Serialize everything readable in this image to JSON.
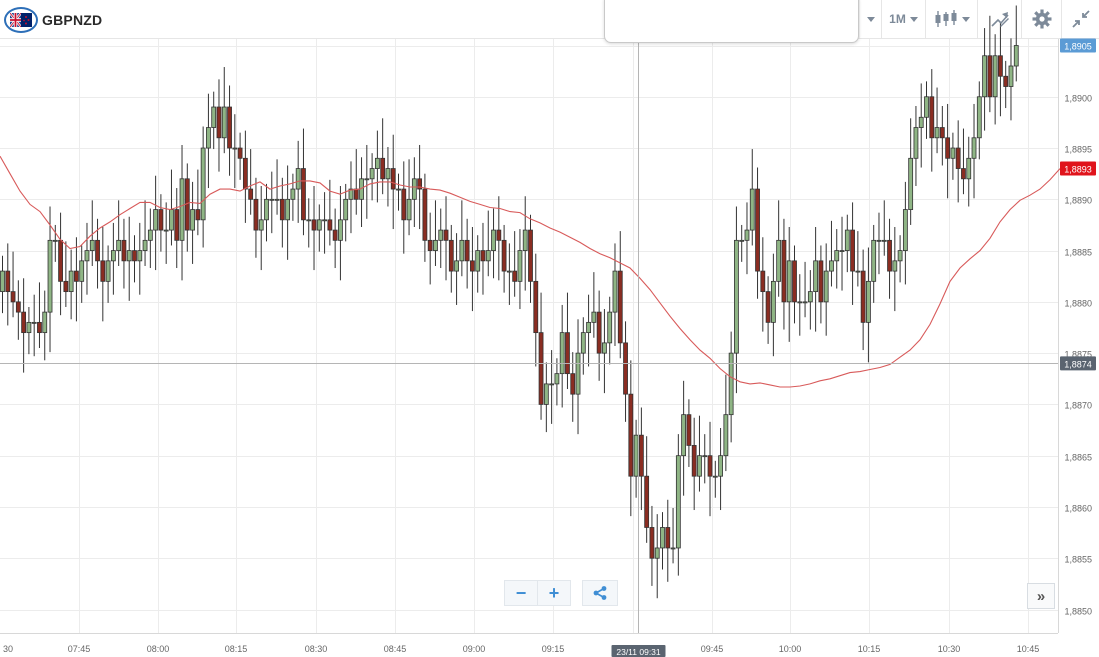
{
  "header": {
    "symbol": "GBPNZD",
    "timeframe": "1M",
    "icons": [
      "gbp-nzd-flag-icon",
      "candlestick-type-icon",
      "drawing-tools-icon",
      "settings-gear-icon",
      "collapse-arrows-icon"
    ]
  },
  "controls": {
    "zoom_out": "−",
    "zoom_in": "+",
    "share_icon": "share-icon",
    "scroll_right": "»"
  },
  "colors": {
    "up": "#8fb585",
    "down": "#8a2d22",
    "ma_line": "#d85a5a",
    "current_price_badge": "#e0141c",
    "crosshair_badge": "#5a6470",
    "high_badge": "#5b9bd5"
  },
  "chart_data": {
    "type": "candlestick",
    "interval": "1M",
    "time_labels": [
      "30",
      "07:45",
      "08:00",
      "08:15",
      "08:30",
      "08:45",
      "09:00",
      "09:15",
      "09:30",
      "09:45",
      "10:00",
      "10:15",
      "10:30",
      "10:45"
    ],
    "price_ticks": [
      "1,8850",
      "1,8855",
      "1,8860",
      "1,8865",
      "1,8870",
      "1,8875",
      "1,8880",
      "1,8885",
      "1,8890",
      "1,8895",
      "1,8900",
      "1,8905"
    ],
    "ylim": [
      1.8848,
      1.8906
    ],
    "price_badges": {
      "high": "1,8905",
      "current": "1,8893",
      "crosshair": "1,8874"
    },
    "crosshair_time": "23/11 09:31",
    "candles_close": [
      1.8883,
      1.8881,
      1.888,
      1.8879,
      1.8877,
      1.8878,
      1.8878,
      1.8877,
      1.8879,
      1.8886,
      1.8886,
      1.8882,
      1.8881,
      1.8883,
      1.8882,
      1.8884,
      1.8885,
      1.8886,
      1.8884,
      1.8882,
      1.8884,
      1.8885,
      1.8886,
      1.8884,
      1.8885,
      1.8884,
      1.8885,
      1.8886,
      1.8887,
      1.8889,
      1.8887,
      1.8887,
      1.8889,
      1.8886,
      1.8892,
      1.8887,
      1.8889,
      1.8888,
      1.8895,
      1.8897,
      1.8899,
      1.8896,
      1.8899,
      1.8895,
      1.8895,
      1.8894,
      1.8891,
      1.889,
      1.8887,
      1.8888,
      1.889,
      1.889,
      1.889,
      1.8888,
      1.889,
      1.8891,
      1.8893,
      1.8888,
      1.8888,
      1.8887,
      1.8888,
      1.8888,
      1.8887,
      1.8886,
      1.8888,
      1.889,
      1.8891,
      1.889,
      1.8892,
      1.8892,
      1.8893,
      1.8894,
      1.8892,
      1.8893,
      1.8891,
      1.8891,
      1.8888,
      1.889,
      1.8892,
      1.8891,
      1.8886,
      1.8885,
      1.8886,
      1.8887,
      1.8886,
      1.8883,
      1.8884,
      1.8886,
      1.8884,
      1.8883,
      1.8885,
      1.8884,
      1.8885,
      1.8887,
      1.8886,
      1.8883,
      1.8883,
      1.8882,
      1.8885,
      1.8887,
      1.8882,
      1.8877,
      1.887,
      1.8872,
      1.8872,
      1.8873,
      1.8877,
      1.8873,
      1.8871,
      1.8875,
      1.8877,
      1.8878,
      1.8879,
      1.8875,
      1.8876,
      1.8879,
      1.8883,
      1.8876,
      1.8871,
      1.8863,
      1.8867,
      1.8863,
      1.8858,
      1.8855,
      1.8856,
      1.8858,
      1.8856,
      1.8856,
      1.8865,
      1.8869,
      1.8866,
      1.8863,
      1.8865,
      1.8865,
      1.8863,
      1.8863,
      1.8865,
      1.8869,
      1.8875,
      1.8886,
      1.8886,
      1.8887,
      1.8891,
      1.8883,
      1.8881,
      1.8878,
      1.8882,
      1.8886,
      1.888,
      1.8884,
      1.888,
      1.888,
      1.888,
      1.8881,
      1.8884,
      1.888,
      1.8883,
      1.8884,
      1.8885,
      1.8885,
      1.8887,
      1.8883,
      1.8883,
      1.8878,
      1.8882,
      1.8886,
      1.8886,
      1.8886,
      1.8883,
      1.8884,
      1.8885,
      1.8889,
      1.8894,
      1.8897,
      1.8898,
      1.89,
      1.8896,
      1.8897,
      1.8896,
      1.8894,
      1.8895,
      1.8893,
      1.8892,
      1.8894,
      1.8896,
      1.89,
      1.8904,
      1.89,
      1.8904,
      1.8902,
      1.8901,
      1.8903,
      1.8905
    ],
    "moving_average": [
      [
        0,
        1.88942
      ],
      [
        10,
        1.88925
      ],
      [
        20,
        1.88908
      ],
      [
        30,
        1.88895
      ],
      [
        40,
        1.88888
      ],
      [
        50,
        1.88875
      ],
      [
        60,
        1.88861
      ],
      [
        70,
        1.88852
      ],
      [
        80,
        1.88854
      ],
      [
        90,
        1.88864
      ],
      [
        100,
        1.88872
      ],
      [
        110,
        1.88878
      ],
      [
        120,
        1.88885
      ],
      [
        130,
        1.88891
      ],
      [
        140,
        1.88897
      ],
      [
        150,
        1.88897
      ],
      [
        160,
        1.88892
      ],
      [
        170,
        1.8889
      ],
      [
        180,
        1.88893
      ],
      [
        190,
        1.88897
      ],
      [
        200,
        1.88896
      ],
      [
        210,
        1.88905
      ],
      [
        220,
        1.8891
      ],
      [
        230,
        1.8891
      ],
      [
        240,
        1.88908
      ],
      [
        250,
        1.88913
      ],
      [
        260,
        1.88917
      ],
      [
        270,
        1.8891
      ],
      [
        280,
        1.88913
      ],
      [
        290,
        1.88915
      ],
      [
        300,
        1.88918
      ],
      [
        310,
        1.88918
      ],
      [
        320,
        1.88916
      ],
      [
        330,
        1.88908
      ],
      [
        340,
        1.88905
      ],
      [
        350,
        1.88909
      ],
      [
        360,
        1.8891
      ],
      [
        370,
        1.88915
      ],
      [
        380,
        1.88917
      ],
      [
        390,
        1.88917
      ],
      [
        400,
        1.88914
      ],
      [
        410,
        1.88912
      ],
      [
        420,
        1.88912
      ],
      [
        430,
        1.8891
      ],
      [
        440,
        1.88909
      ],
      [
        450,
        1.88906
      ],
      [
        460,
        1.88902
      ],
      [
        470,
        1.88898
      ],
      [
        480,
        1.88895
      ],
      [
        490,
        1.88892
      ],
      [
        500,
        1.88891
      ],
      [
        510,
        1.88888
      ],
      [
        520,
        1.88887
      ],
      [
        530,
        1.88881
      ],
      [
        540,
        1.88877
      ],
      [
        550,
        1.88872
      ],
      [
        560,
        1.88868
      ],
      [
        570,
        1.88863
      ],
      [
        580,
        1.88858
      ],
      [
        590,
        1.88852
      ],
      [
        600,
        1.88847
      ],
      [
        610,
        1.88843
      ],
      [
        620,
        1.88838
      ],
      [
        630,
        1.88833
      ],
      [
        640,
        1.88823
      ],
      [
        650,
        1.88812
      ],
      [
        660,
        1.88799
      ],
      [
        670,
        1.88786
      ],
      [
        680,
        1.88774
      ],
      [
        690,
        1.88763
      ],
      [
        700,
        1.88753
      ],
      [
        710,
        1.88745
      ],
      [
        720,
        1.88735
      ],
      [
        730,
        1.88727
      ],
      [
        740,
        1.88722
      ],
      [
        750,
        1.8872
      ],
      [
        760,
        1.88721
      ],
      [
        770,
        1.88719
      ],
      [
        780,
        1.88717
      ],
      [
        790,
        1.88717
      ],
      [
        800,
        1.88718
      ],
      [
        810,
        1.8872
      ],
      [
        820,
        1.88723
      ],
      [
        830,
        1.88725
      ],
      [
        840,
        1.88728
      ],
      [
        850,
        1.88731
      ],
      [
        860,
        1.88732
      ],
      [
        870,
        1.88734
      ],
      [
        880,
        1.88736
      ],
      [
        890,
        1.88739
      ],
      [
        900,
        1.88746
      ],
      [
        910,
        1.88753
      ],
      [
        920,
        1.88763
      ],
      [
        930,
        1.88778
      ],
      [
        940,
        1.88798
      ],
      [
        950,
        1.8882
      ],
      [
        960,
        1.88833
      ],
      [
        970,
        1.88842
      ],
      [
        980,
        1.8885
      ],
      [
        990,
        1.88862
      ],
      [
        1000,
        1.88878
      ],
      [
        1010,
        1.8889
      ],
      [
        1020,
        1.88899
      ],
      [
        1030,
        1.88904
      ],
      [
        1040,
        1.8891
      ],
      [
        1050,
        1.88919
      ],
      [
        1060,
        1.8893
      ]
    ]
  }
}
